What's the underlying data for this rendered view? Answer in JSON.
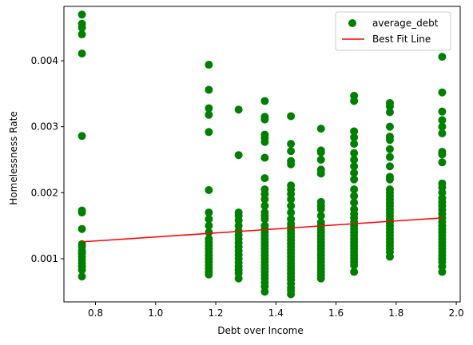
{
  "chart_data": {
    "type": "scatter",
    "xlabel": "Debt over Income",
    "ylabel": "Homelessness Rate",
    "xlim": [
      0.695,
      2.013
    ],
    "ylim": [
      0.000345,
      0.004824
    ],
    "xticks": [
      0.8,
      1.0,
      1.2,
      1.4,
      1.6,
      1.8,
      2.0
    ],
    "xtick_labels": [
      "0.8",
      "1.0",
      "1.2",
      "1.4",
      "1.6",
      "1.8",
      "2.0"
    ],
    "yticks": [
      0.001,
      0.002,
      0.003,
      0.004
    ],
    "ytick_labels": [
      "0.001",
      "0.002",
      "0.003",
      "0.004"
    ],
    "grid": false,
    "legend_position": "top-right",
    "series": [
      {
        "name": "average_debt",
        "kind": "scatter",
        "color": "#008000",
        "points": [
          [
            0.755,
            0.0047
          ],
          [
            0.755,
            0.00456
          ],
          [
            0.755,
            0.0045
          ],
          [
            0.755,
            0.0044
          ],
          [
            0.755,
            0.00411
          ],
          [
            0.755,
            0.00286
          ],
          [
            0.755,
            0.00173
          ],
          [
            0.755,
            0.0017
          ],
          [
            0.755,
            0.00145
          ],
          [
            0.755,
            0.00122
          ],
          [
            0.755,
            0.00118
          ],
          [
            0.755,
            0.00112
          ],
          [
            0.755,
            0.00108
          ],
          [
            0.755,
            0.00103
          ],
          [
            0.755,
            0.00098
          ],
          [
            0.755,
            0.00093
          ],
          [
            0.755,
            0.00088
          ],
          [
            0.755,
            0.00083
          ],
          [
            0.755,
            0.00073
          ],
          [
            1.177,
            0.00394
          ],
          [
            1.177,
            0.00356
          ],
          [
            1.177,
            0.00328
          ],
          [
            1.177,
            0.00318
          ],
          [
            1.177,
            0.00292
          ],
          [
            1.177,
            0.00204
          ],
          [
            1.177,
            0.0017
          ],
          [
            1.177,
            0.0016
          ],
          [
            1.177,
            0.0015
          ],
          [
            1.177,
            0.0014
          ],
          [
            1.177,
            0.0013
          ],
          [
            1.177,
            0.00125
          ],
          [
            1.177,
            0.0012
          ],
          [
            1.177,
            0.00115
          ],
          [
            1.177,
            0.0011
          ],
          [
            1.177,
            0.00105
          ],
          [
            1.177,
            0.001
          ],
          [
            1.177,
            0.00095
          ],
          [
            1.177,
            0.0009
          ],
          [
            1.177,
            0.00085
          ],
          [
            1.177,
            0.0008
          ],
          [
            1.177,
            0.00076
          ],
          [
            1.276,
            0.00326
          ],
          [
            1.276,
            0.00257
          ],
          [
            1.276,
            0.0017
          ],
          [
            1.276,
            0.00165
          ],
          [
            1.276,
            0.00158
          ],
          [
            1.276,
            0.0015
          ],
          [
            1.276,
            0.00142
          ],
          [
            1.276,
            0.00136
          ],
          [
            1.276,
            0.0013
          ],
          [
            1.276,
            0.00124
          ],
          [
            1.276,
            0.00118
          ],
          [
            1.276,
            0.00112
          ],
          [
            1.276,
            0.00106
          ],
          [
            1.276,
            0.001
          ],
          [
            1.276,
            0.00094
          ],
          [
            1.276,
            0.00088
          ],
          [
            1.276,
            0.00083
          ],
          [
            1.276,
            0.00078
          ],
          [
            1.276,
            0.0007
          ],
          [
            1.363,
            0.00339
          ],
          [
            1.363,
            0.00315
          ],
          [
            1.363,
            0.00311
          ],
          [
            1.363,
            0.00288
          ],
          [
            1.363,
            0.00283
          ],
          [
            1.363,
            0.00277
          ],
          [
            1.363,
            0.00253
          ],
          [
            1.363,
            0.00222
          ],
          [
            1.363,
            0.00205
          ],
          [
            1.363,
            0.00198
          ],
          [
            1.363,
            0.0019
          ],
          [
            1.363,
            0.0018
          ],
          [
            1.363,
            0.0017
          ],
          [
            1.363,
            0.00165
          ],
          [
            1.363,
            0.0016
          ],
          [
            1.363,
            0.0015
          ],
          [
            1.363,
            0.00145
          ],
          [
            1.363,
            0.0014
          ],
          [
            1.363,
            0.00135
          ],
          [
            1.363,
            0.0013
          ],
          [
            1.363,
            0.00125
          ],
          [
            1.363,
            0.0012
          ],
          [
            1.363,
            0.00115
          ],
          [
            1.363,
            0.0011
          ],
          [
            1.363,
            0.00105
          ],
          [
            1.363,
            0.001
          ],
          [
            1.363,
            0.00095
          ],
          [
            1.363,
            0.0009
          ],
          [
            1.363,
            0.00085
          ],
          [
            1.363,
            0.0008
          ],
          [
            1.363,
            0.00075
          ],
          [
            1.363,
            0.0007
          ],
          [
            1.363,
            0.00064
          ],
          [
            1.363,
            0.00058
          ],
          [
            1.363,
            0.0005
          ],
          [
            1.45,
            0.00316
          ],
          [
            1.45,
            0.00274
          ],
          [
            1.45,
            0.00263
          ],
          [
            1.45,
            0.00248
          ],
          [
            1.45,
            0.00243
          ],
          [
            1.45,
            0.00211
          ],
          [
            1.45,
            0.00205
          ],
          [
            1.45,
            0.00198
          ],
          [
            1.45,
            0.0019
          ],
          [
            1.45,
            0.0018
          ],
          [
            1.45,
            0.0017
          ],
          [
            1.45,
            0.0016
          ],
          [
            1.45,
            0.00153
          ],
          [
            1.45,
            0.00148
          ],
          [
            1.45,
            0.00143
          ],
          [
            1.45,
            0.00138
          ],
          [
            1.45,
            0.00133
          ],
          [
            1.45,
            0.00128
          ],
          [
            1.45,
            0.00123
          ],
          [
            1.45,
            0.00118
          ],
          [
            1.45,
            0.00113
          ],
          [
            1.45,
            0.00108
          ],
          [
            1.45,
            0.00103
          ],
          [
            1.45,
            0.00098
          ],
          [
            1.45,
            0.00093
          ],
          [
            1.45,
            0.00088
          ],
          [
            1.45,
            0.00083
          ],
          [
            1.45,
            0.00078
          ],
          [
            1.45,
            0.00073
          ],
          [
            1.45,
            0.00068
          ],
          [
            1.45,
            0.00062
          ],
          [
            1.45,
            0.00056
          ],
          [
            1.45,
            0.00052
          ],
          [
            1.45,
            0.00046
          ],
          [
            1.55,
            0.00297
          ],
          [
            1.55,
            0.00264
          ],
          [
            1.55,
            0.00261
          ],
          [
            1.55,
            0.0025
          ],
          [
            1.55,
            0.00235
          ],
          [
            1.55,
            0.00229
          ],
          [
            1.55,
            0.00186
          ],
          [
            1.55,
            0.0018
          ],
          [
            1.55,
            0.00175
          ],
          [
            1.55,
            0.00165
          ],
          [
            1.55,
            0.00155
          ],
          [
            1.55,
            0.0015
          ],
          [
            1.55,
            0.00145
          ],
          [
            1.55,
            0.0014
          ],
          [
            1.55,
            0.00135
          ],
          [
            1.55,
            0.0013
          ],
          [
            1.55,
            0.00125
          ],
          [
            1.55,
            0.0012
          ],
          [
            1.55,
            0.00115
          ],
          [
            1.55,
            0.0011
          ],
          [
            1.55,
            0.00105
          ],
          [
            1.55,
            0.001
          ],
          [
            1.55,
            0.00095
          ],
          [
            1.55,
            0.0009
          ],
          [
            1.55,
            0.00085
          ],
          [
            1.55,
            0.0008
          ],
          [
            1.55,
            0.00075
          ],
          [
            1.55,
            0.0007
          ],
          [
            1.66,
            0.00347
          ],
          [
            1.66,
            0.00339
          ],
          [
            1.66,
            0.00293
          ],
          [
            1.66,
            0.00284
          ],
          [
            1.66,
            0.00274
          ],
          [
            1.66,
            0.0026
          ],
          [
            1.66,
            0.0025
          ],
          [
            1.66,
            0.0024
          ],
          [
            1.66,
            0.0023
          ],
          [
            1.66,
            0.0022
          ],
          [
            1.66,
            0.00205
          ],
          [
            1.66,
            0.00195
          ],
          [
            1.66,
            0.00185
          ],
          [
            1.66,
            0.00175
          ],
          [
            1.66,
            0.00168
          ],
          [
            1.66,
            0.00162
          ],
          [
            1.66,
            0.00156
          ],
          [
            1.66,
            0.0015
          ],
          [
            1.66,
            0.00145
          ],
          [
            1.66,
            0.0014
          ],
          [
            1.66,
            0.00135
          ],
          [
            1.66,
            0.0013
          ],
          [
            1.66,
            0.00125
          ],
          [
            1.66,
            0.0012
          ],
          [
            1.66,
            0.00115
          ],
          [
            1.66,
            0.0011
          ],
          [
            1.66,
            0.00105
          ],
          [
            1.66,
            0.001
          ],
          [
            1.66,
            0.00095
          ],
          [
            1.66,
            0.0009
          ],
          [
            1.66,
            0.0008
          ],
          [
            1.779,
            0.00336
          ],
          [
            1.779,
            0.00331
          ],
          [
            1.779,
            0.00322
          ],
          [
            1.779,
            0.003
          ],
          [
            1.779,
            0.00285
          ],
          [
            1.779,
            0.0028
          ],
          [
            1.779,
            0.00266
          ],
          [
            1.779,
            0.00254
          ],
          [
            1.779,
            0.0024
          ],
          [
            1.779,
            0.00224
          ],
          [
            1.779,
            0.0022
          ],
          [
            1.779,
            0.00205
          ],
          [
            1.779,
            0.002
          ],
          [
            1.779,
            0.00195
          ],
          [
            1.779,
            0.0019
          ],
          [
            1.779,
            0.00185
          ],
          [
            1.779,
            0.0018
          ],
          [
            1.779,
            0.00175
          ],
          [
            1.779,
            0.0017
          ],
          [
            1.779,
            0.00165
          ],
          [
            1.779,
            0.0016
          ],
          [
            1.779,
            0.00155
          ],
          [
            1.779,
            0.0015
          ],
          [
            1.779,
            0.00145
          ],
          [
            1.779,
            0.0014
          ],
          [
            1.779,
            0.00135
          ],
          [
            1.779,
            0.0013
          ],
          [
            1.779,
            0.00125
          ],
          [
            1.779,
            0.0012
          ],
          [
            1.779,
            0.00115
          ],
          [
            1.779,
            0.0011
          ],
          [
            1.779,
            0.00103
          ],
          [
            1.953,
            0.00406
          ],
          [
            1.953,
            0.00352
          ],
          [
            1.953,
            0.00323
          ],
          [
            1.953,
            0.0031
          ],
          [
            1.953,
            0.003
          ],
          [
            1.953,
            0.0029
          ],
          [
            1.953,
            0.00262
          ],
          [
            1.953,
            0.00258
          ],
          [
            1.953,
            0.00246
          ],
          [
            1.953,
            0.00214
          ],
          [
            1.953,
            0.00208
          ],
          [
            1.953,
            0.002
          ],
          [
            1.953,
            0.00192
          ],
          [
            1.953,
            0.00186
          ],
          [
            1.953,
            0.0018
          ],
          [
            1.953,
            0.00174
          ],
          [
            1.953,
            0.00168
          ],
          [
            1.953,
            0.00162
          ],
          [
            1.953,
            0.00156
          ],
          [
            1.953,
            0.0015
          ],
          [
            1.953,
            0.00145
          ],
          [
            1.953,
            0.0014
          ],
          [
            1.953,
            0.00135
          ],
          [
            1.953,
            0.0013
          ],
          [
            1.953,
            0.00125
          ],
          [
            1.953,
            0.0012
          ],
          [
            1.953,
            0.00115
          ],
          [
            1.953,
            0.0011
          ],
          [
            1.953,
            0.00105
          ],
          [
            1.953,
            0.001
          ],
          [
            1.953,
            0.00095
          ],
          [
            1.953,
            0.00088
          ],
          [
            1.953,
            0.0008
          ]
        ]
      },
      {
        "name": "Best Fit Line",
        "kind": "line",
        "color": "#ff0000",
        "points": [
          [
            0.755,
            0.001255
          ],
          [
            1.953,
            0.001618
          ]
        ]
      }
    ]
  }
}
